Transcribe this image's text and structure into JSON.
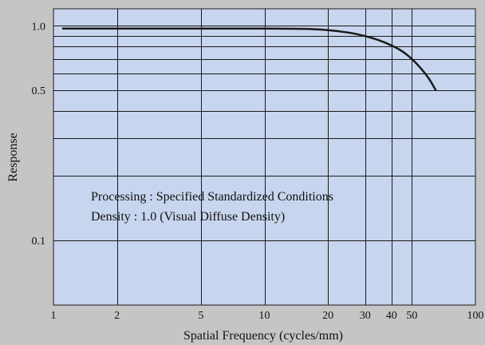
{
  "colors": {
    "page_background": "#c5c5c5",
    "plot_background": "#c8d5ee",
    "grid": "#1a1a1a",
    "curve": "#1a1a1a"
  },
  "chart_data": {
    "type": "line",
    "title": "",
    "xlabel": "Spatial Frequency (cycles/mm)",
    "ylabel": "Response",
    "x_scale": "log",
    "y_scale": "log",
    "xlim": [
      1,
      100
    ],
    "ylim": [
      0.05,
      1.2
    ],
    "x_ticks": [
      {
        "value": 1,
        "label": "1"
      },
      {
        "value": 2,
        "label": "2"
      },
      {
        "value": 5,
        "label": "5"
      },
      {
        "value": 10,
        "label": "10"
      },
      {
        "value": 20,
        "label": "20"
      },
      {
        "value": 30,
        "label": "30"
      },
      {
        "value": 40,
        "label": "40"
      },
      {
        "value": 50,
        "label": "50"
      },
      {
        "value": 100,
        "label": "100"
      }
    ],
    "y_ticks": [
      {
        "value": 1.0,
        "label": "1.0"
      },
      {
        "value": 0.5,
        "label": "0.5"
      },
      {
        "value": 0.1,
        "label": "0.1"
      }
    ],
    "x_gridlines": [
      2,
      5,
      10,
      20,
      30,
      40,
      50
    ],
    "y_gridlines": [
      0.1,
      0.2,
      0.3,
      0.4,
      0.5,
      0.6,
      0.7,
      0.8,
      0.9,
      1.0
    ],
    "grid": true,
    "series": [
      {
        "x": [
          1.1,
          2,
          5,
          10,
          15,
          20,
          25,
          30,
          35,
          40,
          45,
          50,
          55,
          60,
          65
        ],
        "y": [
          0.97,
          0.97,
          0.97,
          0.97,
          0.968,
          0.955,
          0.93,
          0.895,
          0.855,
          0.81,
          0.76,
          0.7,
          0.635,
          0.57,
          0.5
        ]
      }
    ],
    "annotations": [
      "Processing : Specified Standardized Conditions",
      "Density : 1.0 (Visual Diffuse Density)"
    ]
  }
}
